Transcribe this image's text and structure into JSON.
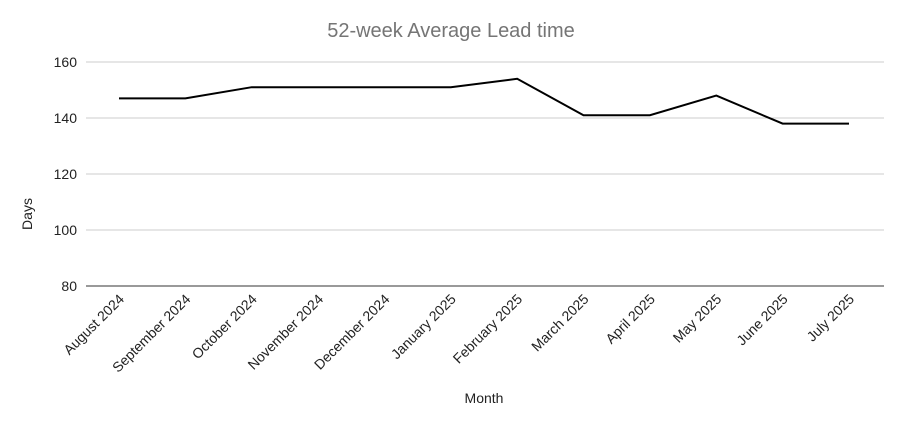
{
  "chart_data": {
    "type": "line",
    "title": "52-week Average Lead time",
    "xlabel": "Month",
    "ylabel": "Days",
    "categories": [
      "August 2024",
      "September 2024",
      "October 2024",
      "November 2024",
      "December 2024",
      "January 2025",
      "February 2025",
      "March 2025",
      "April 2025",
      "May 2025",
      "June 2025",
      "July 2025"
    ],
    "series": [
      {
        "values": [
          147,
          147,
          151,
          151,
          151,
          151,
          154,
          141,
          141,
          148,
          138,
          138
        ],
        "color": "#000000"
      }
    ],
    "ylim": [
      80,
      160
    ],
    "yticks": [
      80,
      100,
      120,
      140,
      160
    ],
    "grid": true,
    "legend": "none"
  }
}
